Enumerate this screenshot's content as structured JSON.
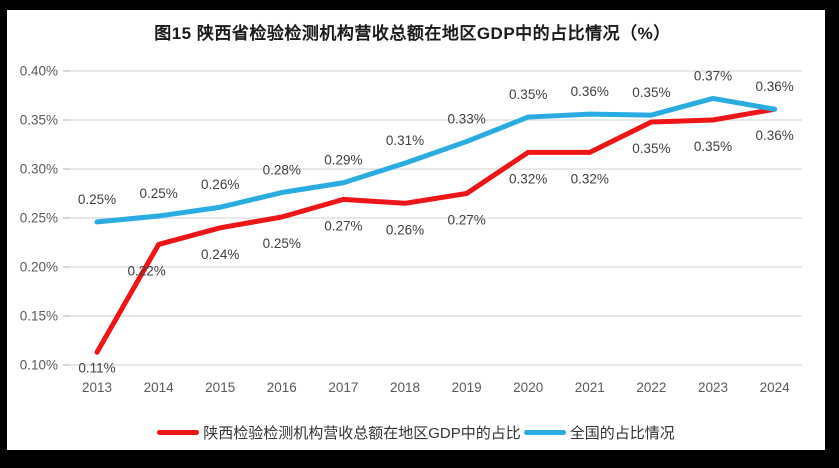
{
  "page": {
    "title": "图15 陕西省检验检测机构营收总额在地区GDP中的占比情况（%）"
  },
  "chart_data": {
    "type": "line",
    "title": "图15 陕西省检验检测机构营收总额在地区GDP中的占比情况（%）",
    "categories": [
      "2013",
      "2014",
      "2015",
      "2016",
      "2017",
      "2018",
      "2019",
      "2020",
      "2021",
      "2022",
      "2023",
      "2024"
    ],
    "series": [
      {
        "name": "陕西检验检测机构营收总额在地区GDP中的占比",
        "color": "#ed1515",
        "values": [
          0.11,
          0.22,
          0.24,
          0.25,
          0.27,
          0.26,
          0.27,
          0.32,
          0.32,
          0.35,
          0.35,
          0.36
        ],
        "plot_values": [
          0.113,
          0.223,
          0.24,
          0.251,
          0.269,
          0.265,
          0.275,
          0.317,
          0.317,
          0.348,
          0.35,
          0.361
        ],
        "labels": [
          "0.11%",
          "0.22%",
          "0.24%",
          "0.25%",
          "0.27%",
          "0.26%",
          "0.27%",
          "0.32%",
          "0.32%",
          "0.35%",
          "0.35%",
          "0.36%"
        ]
      },
      {
        "name": "全国的占比情况",
        "color": "#29ace2",
        "values": [
          0.25,
          0.25,
          0.26,
          0.28,
          0.29,
          0.31,
          0.33,
          0.35,
          0.36,
          0.35,
          0.37,
          0.36
        ],
        "plot_values": [
          0.246,
          0.252,
          0.261,
          0.276,
          0.286,
          0.306,
          0.328,
          0.353,
          0.356,
          0.355,
          0.372,
          0.361
        ],
        "labels": [
          "0.25%",
          "0.25%",
          "0.26%",
          "0.28%",
          "0.29%",
          "0.31%",
          "0.33%",
          "0.35%",
          "0.36%",
          "0.35%",
          "0.37%",
          "0.36%"
        ]
      }
    ],
    "ylim": [
      0.1,
      0.4
    ],
    "y_tick_labels": [
      "0.40%",
      "0.35%",
      "0.30%",
      "0.25%",
      "0.20%",
      "0.15%",
      "0.10%"
    ],
    "unit": "%",
    "grid": true,
    "legend_position": "bottom",
    "colors": {
      "gridline": "#d9d9d9",
      "tick": "#bfbfbf",
      "axis_text": "#595959",
      "data_label_text": "#404040"
    }
  }
}
